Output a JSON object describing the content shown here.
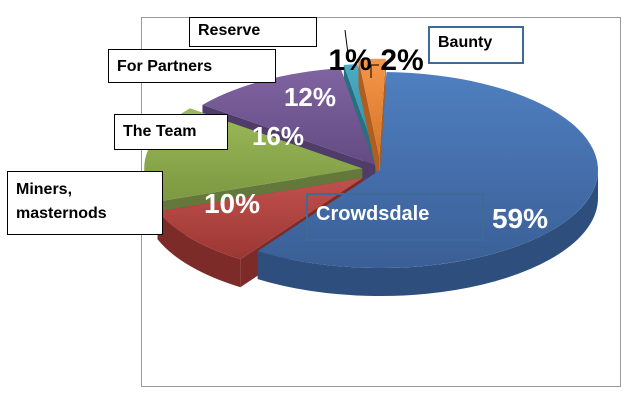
{
  "chart_data": {
    "type": "pie",
    "title": "",
    "style": "3d-exploded",
    "categories": [
      "Crowdsdale",
      "Miners, masternods",
      "The Team",
      "For Partners",
      "Reserve",
      "Baunty"
    ],
    "values": [
      59,
      10,
      16,
      12,
      1,
      2
    ],
    "value_labels": [
      "59%",
      "10%",
      "16%",
      "12%",
      "1%",
      "2%"
    ],
    "colors": [
      "#4a73b0",
      "#b8423e",
      "#8eac4f",
      "#7a5797",
      "#3a9bb8",
      "#e0823a"
    ],
    "legend": "callout boxes beside slices"
  }
}
